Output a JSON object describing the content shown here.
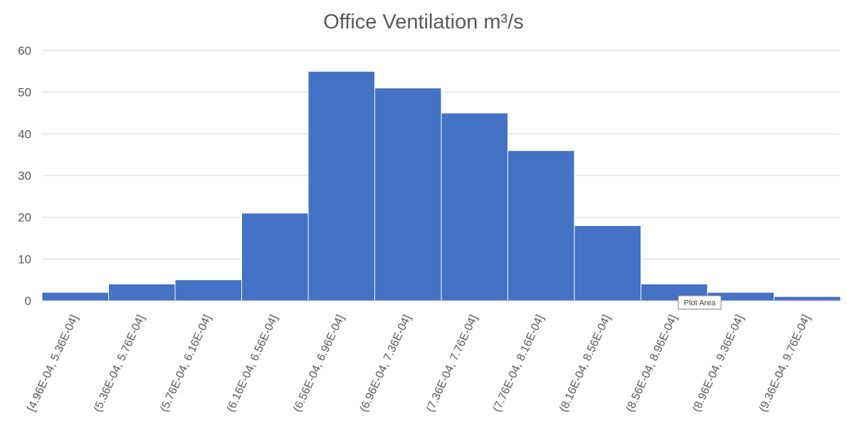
{
  "chart_data": {
    "type": "bar",
    "title": "Office Ventilation m³/s",
    "xlabel": "",
    "ylabel": "",
    "ylim": [
      0,
      60
    ],
    "yticks": [
      0,
      10,
      20,
      30,
      40,
      50,
      60
    ],
    "grid": true,
    "legend": "none",
    "bar_color": "#4472C4",
    "categories": [
      "[4.96E-04, 5.36E-04]",
      "(5.36E-04, 5.76E-04]",
      "(5.76E-04, 6.16E-04]",
      "(6.16E-04, 6.56E-04]",
      "(6.56E-04, 6.96E-04]",
      "(6.96E-04, 7.36E-04]",
      "(7.36E-04, 7.76E-04]",
      "(7.76E-04, 8.16E-04]",
      "(8.16E-04, 8.56E-04]",
      "(8.56E-04, 8.96E-04]",
      "(8.96E-04, 9.36E-04]",
      "(9.36E-04, 9.76E-04]"
    ],
    "values": [
      2,
      4,
      5,
      21,
      55,
      51,
      45,
      36,
      18,
      4,
      2,
      1
    ]
  },
  "tooltip": {
    "text": "Plot Area"
  }
}
